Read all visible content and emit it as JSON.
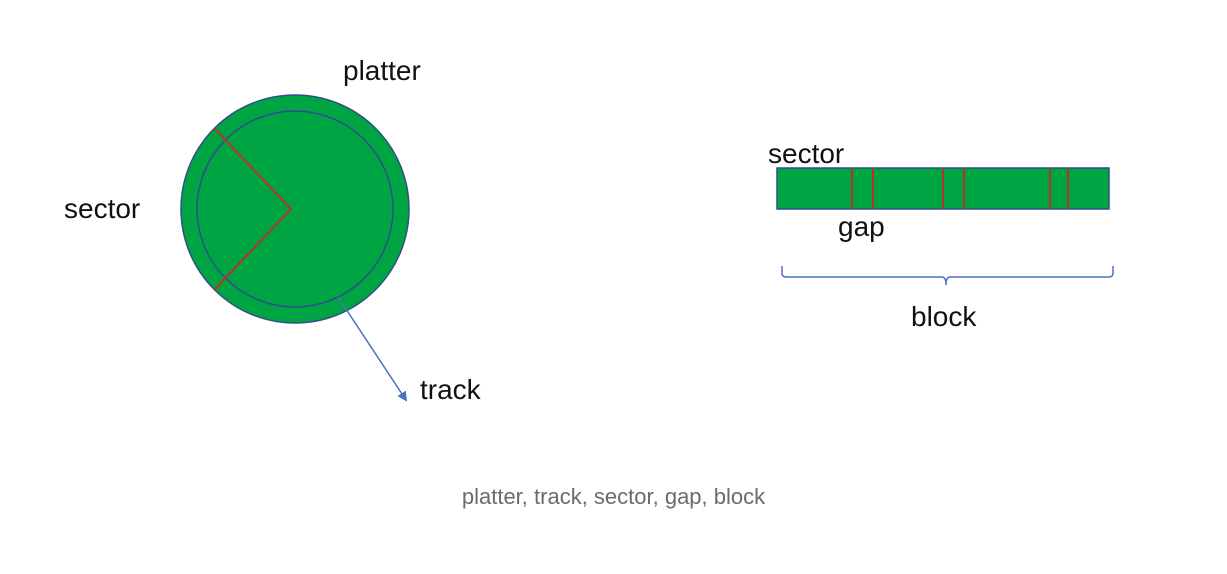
{
  "diagram": {
    "platter_label": "platter",
    "sector_label_left": "sector",
    "track_label": "track",
    "sector_label_right": "sector",
    "gap_label": "gap",
    "block_label": "block"
  },
  "caption": "platter, track, sector, gap, block",
  "colors": {
    "platter_fill": "#00a543",
    "outline": "#2f4f8a",
    "sector_line": "#b5332a",
    "arrow": "#4a72c4",
    "brace": "#4a72c4"
  }
}
